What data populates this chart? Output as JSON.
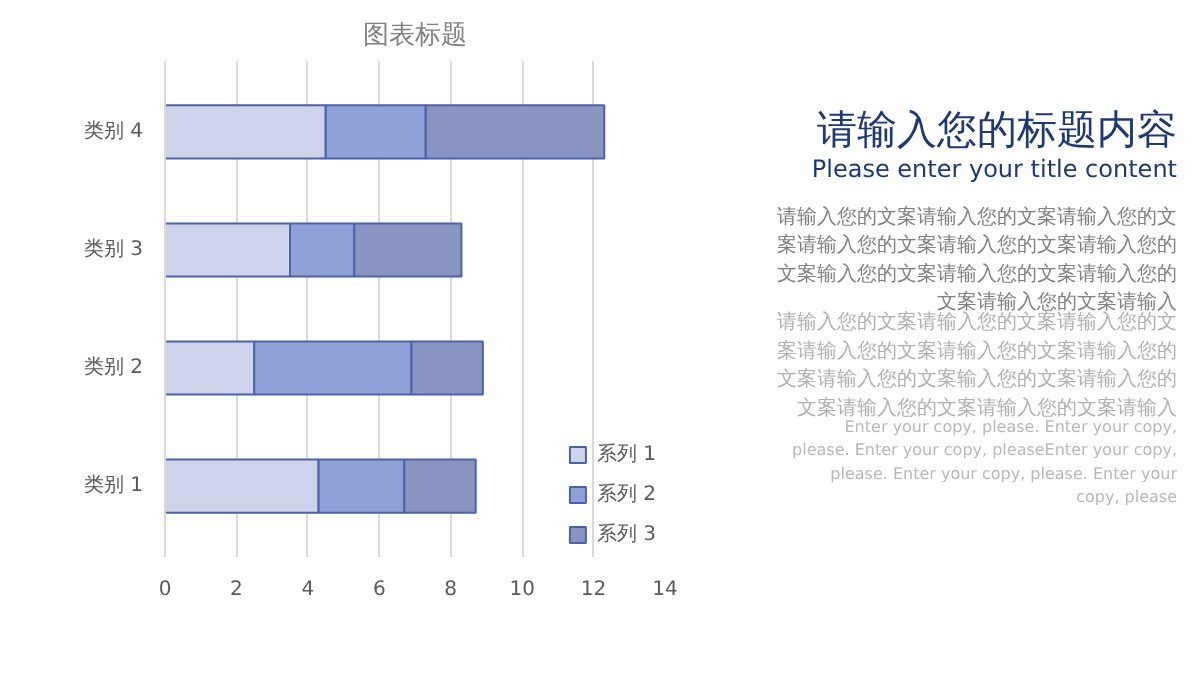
{
  "chart_data": {
    "type": "bar",
    "orientation": "horizontal",
    "stacked": true,
    "title": "图表标题",
    "categories": [
      "类别 4",
      "类别 3",
      "类别 2",
      "类别 1"
    ],
    "series": [
      {
        "name": "系列 1",
        "color": "#ccd3ea",
        "values": [
          4.5,
          3.5,
          2.5,
          4.3
        ]
      },
      {
        "name": "系列 2",
        "color": "#8fa2d8",
        "values": [
          2.8,
          1.8,
          4.4,
          2.4
        ]
      },
      {
        "name": "系列 3",
        "color": "#8795c0",
        "values": [
          5,
          3,
          2,
          2
        ]
      }
    ],
    "xlim": [
      0,
      14
    ],
    "xticks": [
      0,
      2,
      4,
      6,
      8,
      10,
      12,
      14
    ],
    "grid": "x",
    "legend": "bottom right",
    "annotations": [
      "请输入您的标题内容",
      "Please enter your title content",
      "请输入您的文案请输入您的文案请输入您的文案请输入您的文案请输入您的文案请输入您的文案输入您的文案请输入您的文案请输入您的文案请输入您的文案请输入",
      "请输入您的文案请输入您的文案请输入您的文案请输入您的文案请输入您的文案请输入您的文案请输入您的文案输入您的文案请输入您的文案请输入您的文案请输入您的文案请输入",
      "Enter your copy, please. Enter your copy, please. Enter your copy, pleaseEnter your copy, please. Enter your copy, please. Enter your copy, please"
    ]
  }
}
